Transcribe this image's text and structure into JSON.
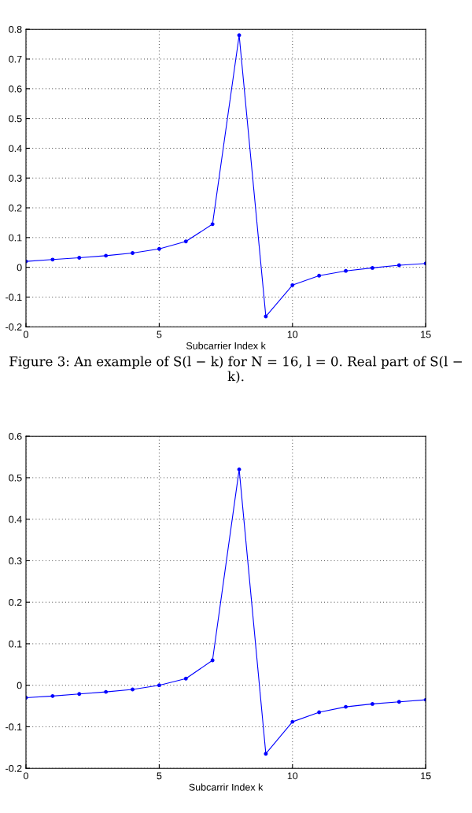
{
  "chart_data": [
    {
      "type": "line",
      "xlabel": "Subcarrier Index k",
      "x": [
        0,
        1,
        2,
        3,
        4,
        5,
        6,
        7,
        8,
        9,
        10,
        11,
        12,
        13,
        14,
        15
      ],
      "series": [
        {
          "color": "#0000ff",
          "values": [
            0.02,
            0.026,
            0.032,
            0.039,
            0.048,
            0.062,
            0.087,
            0.145,
            0.78,
            -0.165,
            -0.06,
            -0.028,
            -0.012,
            -0.002,
            0.007,
            0.013
          ]
        }
      ],
      "xlim": [
        0,
        15
      ],
      "xticks": [
        0,
        5,
        10,
        15
      ],
      "ylim": [
        -0.2,
        0.8
      ],
      "yticks": [
        -0.2,
        -0.1,
        0,
        0.1,
        0.2,
        0.3,
        0.4,
        0.5,
        0.6,
        0.7,
        0.8
      ],
      "grid": true,
      "marker": "circle",
      "line_style": "solid",
      "annotations": [
        "Figure 3: An example of S(l − k) for N = 16, l = 0. Real part of S(l − k)."
      ]
    },
    {
      "type": "line",
      "xlabel": "Subcarrir Index k",
      "x": [
        0,
        1,
        2,
        3,
        4,
        5,
        6,
        7,
        8,
        9,
        10,
        11,
        12,
        13,
        14,
        15
      ],
      "series": [
        {
          "color": "#0000ff",
          "values": [
            -0.03,
            -0.026,
            -0.021,
            -0.016,
            -0.01,
            0.0,
            0.016,
            0.06,
            0.52,
            -0.165,
            -0.088,
            -0.065,
            -0.052,
            -0.045,
            -0.04,
            -0.035
          ]
        }
      ],
      "xlim": [
        0,
        15
      ],
      "xticks": [
        0,
        5,
        10,
        15
      ],
      "ylim": [
        -0.2,
        0.6
      ],
      "yticks": [
        -0.2,
        -0.1,
        0,
        0.1,
        0.2,
        0.3,
        0.4,
        0.5,
        0.6
      ],
      "grid": true,
      "marker": "circle",
      "line_style": "solid"
    }
  ]
}
